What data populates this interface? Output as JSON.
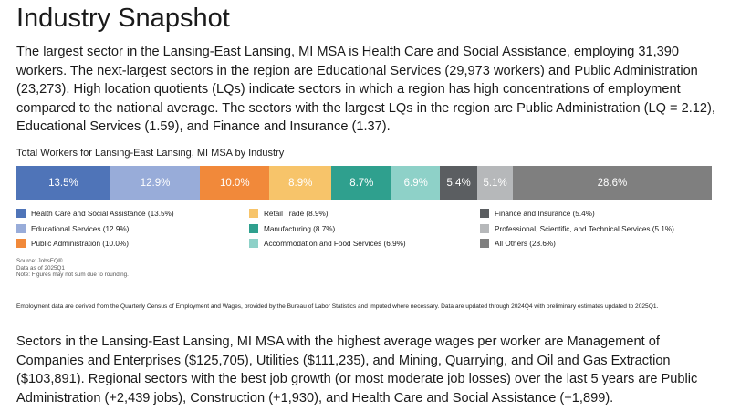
{
  "title": "Industry Snapshot",
  "intro": "The largest sector in the Lansing-East Lansing, MI MSA is Health Care and Social Assistance, employing 31,390 workers. The next-largest sectors in the region are Educational Services (29,973 workers) and Public Administration (23,273). High location quotients (LQs) indicate sectors in which a region has high concentrations of employment compared to the national average. The sectors with the largest LQs in the region are Public Administration (LQ = 2.12), Educational Services (1.59), and Finance and Insurance (1.37).",
  "chart_data": {
    "type": "bar",
    "title": "Total Workers for Lansing-East Lansing, MI MSA by Industry",
    "orientation": "horizontal-stacked-100",
    "series": [
      {
        "name": "Health Care and Social Assistance",
        "value": 13.5,
        "label": "13.5%",
        "legend": "Health Care and Social Assistance (13.5%)",
        "color": "#4f74b8"
      },
      {
        "name": "Educational Services",
        "value": 12.9,
        "label": "12.9%",
        "legend": "Educational Services (12.9%)",
        "color": "#98acd9"
      },
      {
        "name": "Public Administration",
        "value": 10.0,
        "label": "10.0%",
        "legend": "Public Administration (10.0%)",
        "color": "#f1893a"
      },
      {
        "name": "Retail Trade",
        "value": 8.9,
        "label": "8.9%",
        "legend": "Retail Trade (8.9%)",
        "color": "#f7c46a"
      },
      {
        "name": "Manufacturing",
        "value": 8.7,
        "label": "8.7%",
        "legend": "Manufacturing (8.7%)",
        "color": "#2fa08e"
      },
      {
        "name": "Accommodation and Food Services",
        "value": 6.9,
        "label": "6.9%",
        "legend": "Accommodation and Food Services (6.9%)",
        "color": "#8ed1c8"
      },
      {
        "name": "Finance and Insurance",
        "value": 5.4,
        "label": "5.4%",
        "legend": "Finance and Insurance (5.4%)",
        "color": "#5b5e61"
      },
      {
        "name": "Professional, Scientific, and Technical Services",
        "value": 5.1,
        "label": "5.1%",
        "legend": "Professional, Scientific, and Technical Services (5.1%)",
        "color": "#b6b8ba"
      },
      {
        "name": "All Others",
        "value": 28.6,
        "label": "28.6%",
        "legend": "All Others (28.6%)",
        "color": "#7f7f7f"
      }
    ],
    "legend_placement": "bottom"
  },
  "notes": {
    "source": "Source: JobsEQ®",
    "data_as_of": "Data as of 2025Q1",
    "rounding": "Note: Figures may not sum due to rounding."
  },
  "footnote": "Employment data are derived from the Quarterly Census of Employment and Wages, provided by the Bureau of Labor Statistics and imputed where necessary. Data are updated through 2024Q4 with preliminary estimates updated to 2025Q1.",
  "wages": "Sectors in the Lansing-East Lansing, MI MSA with the highest average wages per worker are Management of Companies and Enterprises ($125,705), Utilities ($111,235), and Mining, Quarrying, and Oil and Gas Extraction ($103,891). Regional sectors with the best job growth (or most moderate job losses) over the last 5 years are Public Administration (+2,439 jobs), Construction (+1,930), and Health Care and Social Assistance (+1,899)."
}
